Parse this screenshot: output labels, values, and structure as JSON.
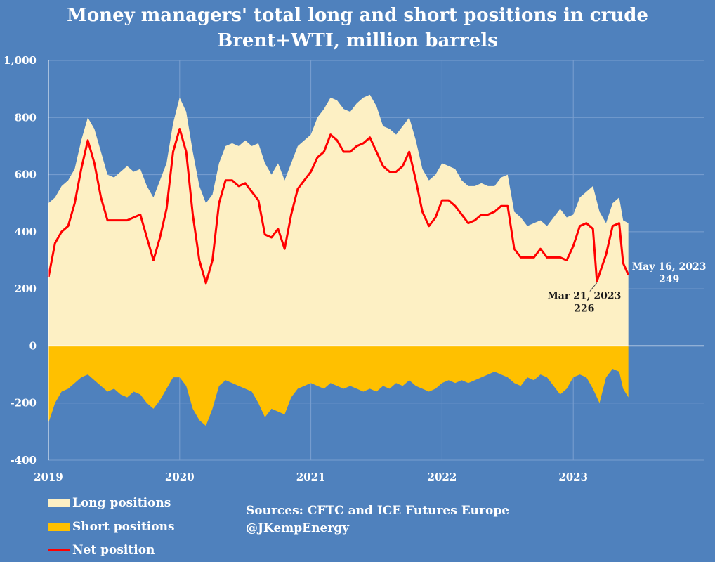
{
  "chart_data": {
    "type": "area",
    "title": "Money managers' total long and short positions in crude",
    "subtitle": "Brent+WTI, million barrels",
    "ylim": [
      -400,
      1000
    ],
    "yticks": [
      "1,000",
      "800",
      "600",
      "400",
      "200",
      "0",
      "-200",
      "-400"
    ],
    "ytick_values": [
      1000,
      800,
      600,
      400,
      200,
      0,
      -200,
      -400
    ],
    "xlim": [
      2019.0,
      2024.0
    ],
    "xticks": [
      "2019",
      "2020",
      "2021",
      "2022",
      "2023"
    ],
    "xtick_values": [
      2019,
      2020,
      2021,
      2022,
      2023
    ],
    "grid": true,
    "series": [
      {
        "name": "Long positions",
        "color": "#fdf0c4",
        "points": [
          [
            2019.0,
            500
          ],
          [
            2019.05,
            520
          ],
          [
            2019.1,
            560
          ],
          [
            2019.15,
            580
          ],
          [
            2019.2,
            620
          ],
          [
            2019.25,
            720
          ],
          [
            2019.3,
            800
          ],
          [
            2019.35,
            760
          ],
          [
            2019.4,
            680
          ],
          [
            2019.45,
            600
          ],
          [
            2019.5,
            590
          ],
          [
            2019.55,
            610
          ],
          [
            2019.6,
            630
          ],
          [
            2019.65,
            610
          ],
          [
            2019.7,
            620
          ],
          [
            2019.75,
            560
          ],
          [
            2019.8,
            520
          ],
          [
            2019.85,
            580
          ],
          [
            2019.9,
            640
          ],
          [
            2019.95,
            780
          ],
          [
            2020.0,
            870
          ],
          [
            2020.05,
            820
          ],
          [
            2020.1,
            680
          ],
          [
            2020.15,
            560
          ],
          [
            2020.2,
            500
          ],
          [
            2020.25,
            530
          ],
          [
            2020.3,
            640
          ],
          [
            2020.35,
            700
          ],
          [
            2020.4,
            710
          ],
          [
            2020.45,
            700
          ],
          [
            2020.5,
            720
          ],
          [
            2020.55,
            700
          ],
          [
            2020.6,
            710
          ],
          [
            2020.65,
            640
          ],
          [
            2020.7,
            600
          ],
          [
            2020.75,
            640
          ],
          [
            2020.8,
            580
          ],
          [
            2020.85,
            640
          ],
          [
            2020.9,
            700
          ],
          [
            2020.95,
            720
          ],
          [
            2021.0,
            740
          ],
          [
            2021.05,
            800
          ],
          [
            2021.1,
            830
          ],
          [
            2021.15,
            870
          ],
          [
            2021.2,
            860
          ],
          [
            2021.25,
            830
          ],
          [
            2021.3,
            820
          ],
          [
            2021.35,
            850
          ],
          [
            2021.4,
            870
          ],
          [
            2021.45,
            880
          ],
          [
            2021.5,
            840
          ],
          [
            2021.55,
            770
          ],
          [
            2021.6,
            760
          ],
          [
            2021.65,
            740
          ],
          [
            2021.7,
            770
          ],
          [
            2021.75,
            800
          ],
          [
            2021.8,
            720
          ],
          [
            2021.85,
            620
          ],
          [
            2021.9,
            580
          ],
          [
            2021.95,
            600
          ],
          [
            2022.0,
            640
          ],
          [
            2022.05,
            630
          ],
          [
            2022.1,
            620
          ],
          [
            2022.15,
            580
          ],
          [
            2022.2,
            560
          ],
          [
            2022.25,
            560
          ],
          [
            2022.3,
            570
          ],
          [
            2022.35,
            560
          ],
          [
            2022.4,
            560
          ],
          [
            2022.45,
            590
          ],
          [
            2022.5,
            600
          ],
          [
            2022.55,
            470
          ],
          [
            2022.6,
            450
          ],
          [
            2022.65,
            420
          ],
          [
            2022.7,
            430
          ],
          [
            2022.75,
            440
          ],
          [
            2022.8,
            420
          ],
          [
            2022.85,
            450
          ],
          [
            2022.9,
            480
          ],
          [
            2022.95,
            450
          ],
          [
            2023.0,
            460
          ],
          [
            2023.05,
            520
          ],
          [
            2023.1,
            540
          ],
          [
            2023.15,
            560
          ],
          [
            2023.2,
            470
          ],
          [
            2023.25,
            430
          ],
          [
            2023.3,
            500
          ],
          [
            2023.35,
            520
          ],
          [
            2023.38,
            440
          ],
          [
            2023.42,
            430
          ]
        ]
      },
      {
        "name": "Short positions",
        "color": "#ffc000",
        "points": [
          [
            2019.0,
            -270
          ],
          [
            2019.05,
            -200
          ],
          [
            2019.1,
            -160
          ],
          [
            2019.15,
            -150
          ],
          [
            2019.2,
            -130
          ],
          [
            2019.25,
            -110
          ],
          [
            2019.3,
            -100
          ],
          [
            2019.35,
            -120
          ],
          [
            2019.4,
            -140
          ],
          [
            2019.45,
            -160
          ],
          [
            2019.5,
            -150
          ],
          [
            2019.55,
            -170
          ],
          [
            2019.6,
            -180
          ],
          [
            2019.65,
            -160
          ],
          [
            2019.7,
            -170
          ],
          [
            2019.75,
            -200
          ],
          [
            2019.8,
            -220
          ],
          [
            2019.85,
            -190
          ],
          [
            2019.9,
            -150
          ],
          [
            2019.95,
            -110
          ],
          [
            2020.0,
            -110
          ],
          [
            2020.05,
            -140
          ],
          [
            2020.1,
            -220
          ],
          [
            2020.15,
            -260
          ],
          [
            2020.2,
            -280
          ],
          [
            2020.25,
            -220
          ],
          [
            2020.3,
            -140
          ],
          [
            2020.35,
            -120
          ],
          [
            2020.4,
            -130
          ],
          [
            2020.45,
            -140
          ],
          [
            2020.5,
            -150
          ],
          [
            2020.55,
            -160
          ],
          [
            2020.6,
            -200
          ],
          [
            2020.65,
            -250
          ],
          [
            2020.7,
            -220
          ],
          [
            2020.75,
            -230
          ],
          [
            2020.8,
            -240
          ],
          [
            2020.85,
            -180
          ],
          [
            2020.9,
            -150
          ],
          [
            2020.95,
            -140
          ],
          [
            2021.0,
            -130
          ],
          [
            2021.05,
            -140
          ],
          [
            2021.1,
            -150
          ],
          [
            2021.15,
            -130
          ],
          [
            2021.2,
            -140
          ],
          [
            2021.25,
            -150
          ],
          [
            2021.3,
            -140
          ],
          [
            2021.35,
            -150
          ],
          [
            2021.4,
            -160
          ],
          [
            2021.45,
            -150
          ],
          [
            2021.5,
            -160
          ],
          [
            2021.55,
            -140
          ],
          [
            2021.6,
            -150
          ],
          [
            2021.65,
            -130
          ],
          [
            2021.7,
            -140
          ],
          [
            2021.75,
            -120
          ],
          [
            2021.8,
            -140
          ],
          [
            2021.85,
            -150
          ],
          [
            2021.9,
            -160
          ],
          [
            2021.95,
            -150
          ],
          [
            2022.0,
            -130
          ],
          [
            2022.05,
            -120
          ],
          [
            2022.1,
            -130
          ],
          [
            2022.15,
            -120
          ],
          [
            2022.2,
            -130
          ],
          [
            2022.25,
            -120
          ],
          [
            2022.3,
            -110
          ],
          [
            2022.35,
            -100
          ],
          [
            2022.4,
            -90
          ],
          [
            2022.45,
            -100
          ],
          [
            2022.5,
            -110
          ],
          [
            2022.55,
            -130
          ],
          [
            2022.6,
            -140
          ],
          [
            2022.65,
            -110
          ],
          [
            2022.7,
            -120
          ],
          [
            2022.75,
            -100
          ],
          [
            2022.8,
            -110
          ],
          [
            2022.85,
            -140
          ],
          [
            2022.9,
            -170
          ],
          [
            2022.95,
            -150
          ],
          [
            2023.0,
            -110
          ],
          [
            2023.05,
            -100
          ],
          [
            2023.1,
            -110
          ],
          [
            2023.15,
            -150
          ],
          [
            2023.2,
            -200
          ],
          [
            2023.25,
            -110
          ],
          [
            2023.3,
            -80
          ],
          [
            2023.35,
            -90
          ],
          [
            2023.38,
            -150
          ],
          [
            2023.42,
            -180
          ]
        ]
      },
      {
        "name": "Net position",
        "color": "#ff0000",
        "points": [
          [
            2019.0,
            240
          ],
          [
            2019.05,
            360
          ],
          [
            2019.1,
            400
          ],
          [
            2019.15,
            420
          ],
          [
            2019.2,
            500
          ],
          [
            2019.25,
            620
          ],
          [
            2019.3,
            720
          ],
          [
            2019.35,
            640
          ],
          [
            2019.4,
            520
          ],
          [
            2019.45,
            440
          ],
          [
            2019.5,
            440
          ],
          [
            2019.55,
            440
          ],
          [
            2019.6,
            440
          ],
          [
            2019.65,
            450
          ],
          [
            2019.7,
            460
          ],
          [
            2019.75,
            380
          ],
          [
            2019.8,
            300
          ],
          [
            2019.85,
            380
          ],
          [
            2019.9,
            480
          ],
          [
            2019.95,
            680
          ],
          [
            2020.0,
            760
          ],
          [
            2020.05,
            680
          ],
          [
            2020.1,
            460
          ],
          [
            2020.15,
            300
          ],
          [
            2020.2,
            220
          ],
          [
            2020.25,
            300
          ],
          [
            2020.3,
            500
          ],
          [
            2020.35,
            580
          ],
          [
            2020.4,
            580
          ],
          [
            2020.45,
            560
          ],
          [
            2020.5,
            570
          ],
          [
            2020.55,
            540
          ],
          [
            2020.6,
            510
          ],
          [
            2020.65,
            390
          ],
          [
            2020.7,
            380
          ],
          [
            2020.75,
            410
          ],
          [
            2020.8,
            340
          ],
          [
            2020.85,
            460
          ],
          [
            2020.9,
            550
          ],
          [
            2020.95,
            580
          ],
          [
            2021.0,
            610
          ],
          [
            2021.05,
            660
          ],
          [
            2021.1,
            680
          ],
          [
            2021.15,
            740
          ],
          [
            2021.2,
            720
          ],
          [
            2021.25,
            680
          ],
          [
            2021.3,
            680
          ],
          [
            2021.35,
            700
          ],
          [
            2021.4,
            710
          ],
          [
            2021.45,
            730
          ],
          [
            2021.5,
            680
          ],
          [
            2021.55,
            630
          ],
          [
            2021.6,
            610
          ],
          [
            2021.65,
            610
          ],
          [
            2021.7,
            630
          ],
          [
            2021.75,
            680
          ],
          [
            2021.8,
            580
          ],
          [
            2021.85,
            470
          ],
          [
            2021.9,
            420
          ],
          [
            2021.95,
            450
          ],
          [
            2022.0,
            510
          ],
          [
            2022.05,
            510
          ],
          [
            2022.1,
            490
          ],
          [
            2022.15,
            460
          ],
          [
            2022.2,
            430
          ],
          [
            2022.25,
            440
          ],
          [
            2022.3,
            460
          ],
          [
            2022.35,
            460
          ],
          [
            2022.4,
            470
          ],
          [
            2022.45,
            490
          ],
          [
            2022.5,
            490
          ],
          [
            2022.55,
            340
          ],
          [
            2022.6,
            310
          ],
          [
            2022.65,
            310
          ],
          [
            2022.7,
            310
          ],
          [
            2022.75,
            340
          ],
          [
            2022.8,
            310
          ],
          [
            2022.85,
            310
          ],
          [
            2022.9,
            310
          ],
          [
            2022.95,
            300
          ],
          [
            2023.0,
            350
          ],
          [
            2023.05,
            420
          ],
          [
            2023.1,
            430
          ],
          [
            2023.15,
            410
          ],
          [
            2023.18,
            226
          ],
          [
            2023.25,
            320
          ],
          [
            2023.3,
            420
          ],
          [
            2023.35,
            430
          ],
          [
            2023.38,
            290
          ],
          [
            2023.42,
            249
          ]
        ]
      }
    ],
    "annotations": [
      {
        "label": "Mar 21, 2023",
        "value": "226",
        "x": 2023.18,
        "y": 226
      },
      {
        "label": "May 16, 2023",
        "value": "249",
        "x": 2023.42,
        "y": 249
      }
    ],
    "legend": "bottom-left",
    "sources": [
      "Sources: CFTC and ICE Futures Europe",
      "@JKempEnergy"
    ]
  }
}
